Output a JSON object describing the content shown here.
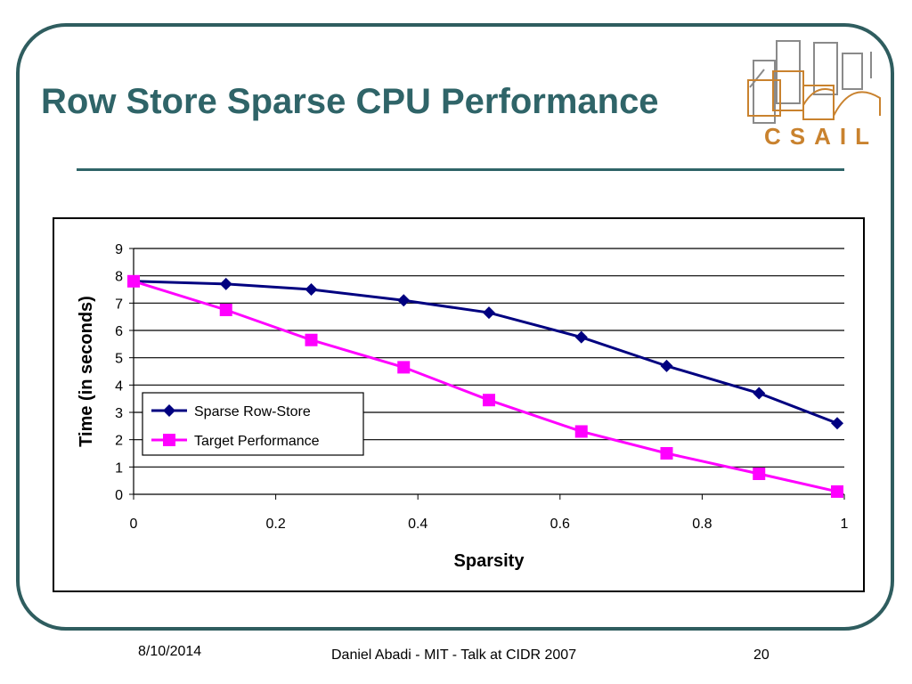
{
  "slide": {
    "title": "Row Store Sparse CPU Performance",
    "logo_text": "CSAIL",
    "footer": {
      "date": "8/10/2014",
      "center": "Daniel Abadi - MIT - Talk at CIDR 2007",
      "page": "20"
    }
  },
  "colors": {
    "title": "#2f6468",
    "frame": "#2f5d5f",
    "logo": "#c9822e",
    "series_1": "#000080",
    "series_2": "#ff00ff"
  },
  "chart_data": {
    "type": "line",
    "xlabel": "Sparsity",
    "ylabel": "Time (in seconds)",
    "xlim": [
      0,
      1
    ],
    "ylim": [
      0,
      9
    ],
    "x_ticks": [
      "0",
      "0.2",
      "0.4",
      "0.6",
      "0.8",
      "1"
    ],
    "y_ticks": [
      "0",
      "1",
      "2",
      "3",
      "4",
      "5",
      "6",
      "7",
      "8",
      "9"
    ],
    "grid": "horizontal",
    "legend_position": "lower-left",
    "series": [
      {
        "name": "Sparse Row-Store",
        "marker": "diamond",
        "color": "#000080",
        "x": [
          0,
          0.13,
          0.25,
          0.38,
          0.5,
          0.63,
          0.75,
          0.88,
          0.99
        ],
        "y": [
          7.8,
          7.7,
          7.5,
          7.1,
          6.65,
          5.75,
          4.7,
          3.7,
          2.6
        ]
      },
      {
        "name": "Target Performance",
        "marker": "square",
        "color": "#ff00ff",
        "x": [
          0,
          0.13,
          0.25,
          0.38,
          0.5,
          0.63,
          0.75,
          0.88,
          0.99
        ],
        "y": [
          7.8,
          6.75,
          5.65,
          4.65,
          3.45,
          2.3,
          1.5,
          0.75,
          0.1
        ]
      }
    ]
  }
}
